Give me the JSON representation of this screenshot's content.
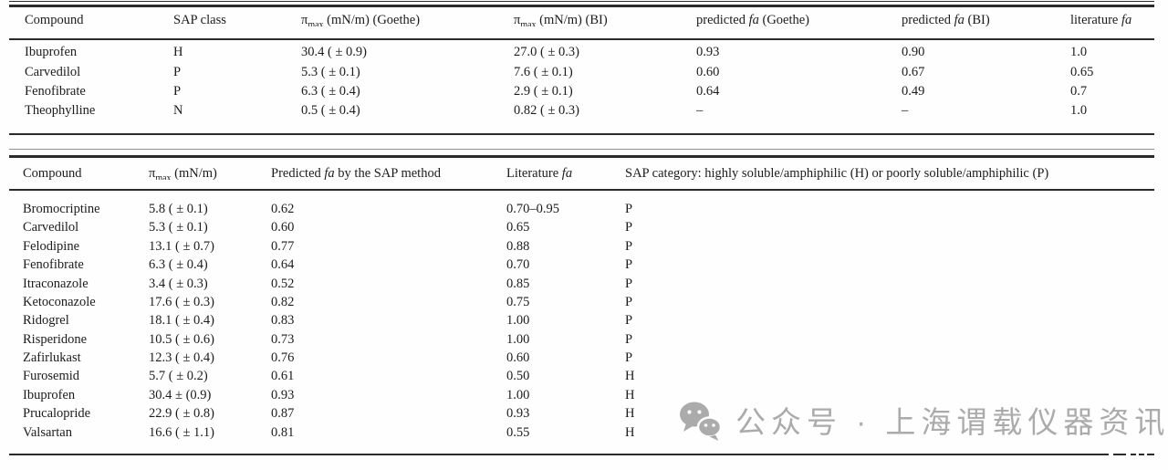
{
  "colors": {
    "text": "#1c1c1c",
    "rule": "#2b2b2b",
    "watermark_gray": "#ababab",
    "background": "#fefefe"
  },
  "table1": {
    "columns": [
      {
        "text": "Compound"
      },
      {
        "text": "SAP class"
      },
      {
        "pre": "π",
        "sub": "max",
        "post": " (mN/m) (Goethe)"
      },
      {
        "pre": "π",
        "sub": "max",
        "post": " (mN/m) (BI)"
      },
      {
        "pre": "predicted ",
        "it": "fa",
        "post": " (Goethe)"
      },
      {
        "pre": "predicted ",
        "it": "fa",
        "post": " (BI)"
      },
      {
        "pre": "literature ",
        "it": "fa",
        "post": ""
      }
    ],
    "rows": [
      [
        "Ibuprofen",
        "H",
        "30.4 ( ± 0.9)",
        "27.0 ( ± 0.3)",
        "0.93",
        "0.90",
        "1.0"
      ],
      [
        "Carvedilol",
        "P",
        "5.3 ( ± 0.1)",
        "7.6 ( ± 0.1)",
        "0.60",
        "0.67",
        "0.65"
      ],
      [
        "Fenofibrate",
        "P",
        "6.3 ( ± 0.4)",
        "2.9 ( ± 0.1)",
        "0.64",
        "0.49",
        "0.7"
      ],
      [
        "Theophylline",
        "N",
        "0.5 ( ± 0.4)",
        "0.82 ( ± 0.3)",
        "–",
        "–",
        "1.0"
      ]
    ]
  },
  "table2": {
    "columns": [
      {
        "text": "Compound"
      },
      {
        "pre": "π",
        "sub": "max",
        "post": " (mN/m)"
      },
      {
        "pre": "Predicted ",
        "it": "fa",
        "post": " by the SAP method"
      },
      {
        "pre": "Literature ",
        "it": "fa",
        "post": ""
      },
      {
        "text": "SAP category: highly soluble/amphiphilic (H) or poorly soluble/amphiphilic (P)"
      }
    ],
    "rows": [
      [
        "Bromocriptine",
        "5.8 ( ± 0.1)",
        "0.62",
        "0.70–0.95",
        "P"
      ],
      [
        "Carvedilol",
        "5.3 ( ± 0.1)",
        "0.60",
        "0.65",
        "P"
      ],
      [
        "Felodipine",
        "13.1 ( ± 0.7)",
        "0.77",
        "0.88",
        "P"
      ],
      [
        "Fenofibrate",
        "6.3 ( ± 0.4)",
        "0.64",
        "0.70",
        "P"
      ],
      [
        "Itraconazole",
        "3.4 ( ± 0.3)",
        "0.52",
        "0.85",
        "P"
      ],
      [
        "Ketoconazole",
        "17.6 ( ± 0.3)",
        "0.82",
        "0.75",
        "P"
      ],
      [
        "Ridogrel",
        "18.1 ( ± 0.4)",
        "0.83",
        "1.00",
        "P"
      ],
      [
        "Risperidone",
        "10.5 ( ± 0.6)",
        "0.73",
        "1.00",
        "P"
      ],
      [
        "Zafirlukast",
        "12.3 ( ± 0.4)",
        "0.76",
        "0.60",
        "P"
      ],
      [
        "Furosemid",
        "5.7 ( ± 0.2)",
        "0.61",
        "0.50",
        "H"
      ],
      [
        "Ibuprofen",
        "30.4 ± (0.9)",
        "0.93",
        "1.00",
        "H"
      ],
      [
        "Prucalopride",
        "22.9 ( ± 0.8)",
        "0.87",
        "0.93",
        "H"
      ],
      [
        "Valsartan",
        "16.6 ( ± 1.1)",
        "0.81",
        "0.55",
        "H"
      ]
    ]
  },
  "watermark": {
    "icon": "wechat-icon",
    "text": "公众号 · 上海谓载仪器资讯"
  }
}
